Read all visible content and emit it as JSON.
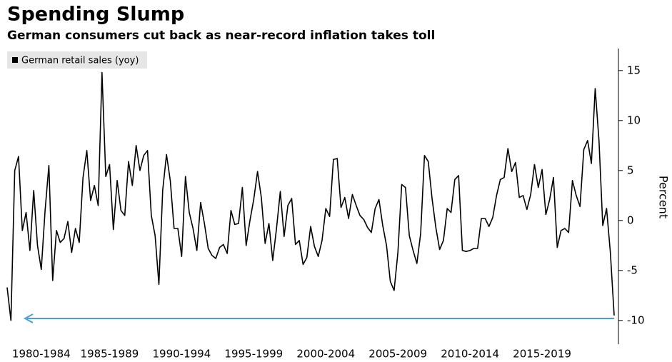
{
  "chart_data": {
    "type": "line",
    "title": "Spending Slump",
    "subtitle": "German consumers cut back as near-record inflation takes toll",
    "y_label": "Percent",
    "categories": [
      null,
      null,
      null,
      null,
      null,
      null,
      null,
      null,
      null,
      "1980-1984",
      null,
      null,
      null,
      null,
      null,
      null,
      null,
      null,
      null,
      null,
      null,
      null,
      null,
      null,
      null,
      null,
      null,
      "1985-1989",
      null,
      null,
      null,
      null,
      null,
      null,
      null,
      null,
      null,
      null,
      null,
      null,
      null,
      null,
      null,
      null,
      null,
      null,
      "1990-1994",
      null,
      null,
      null,
      null,
      null,
      null,
      null,
      null,
      null,
      null,
      null,
      null,
      null,
      null,
      null,
      null,
      null,
      null,
      "1995-1999",
      null,
      null,
      null,
      null,
      null,
      null,
      null,
      null,
      null,
      null,
      null,
      null,
      null,
      null,
      null,
      null,
      null,
      null,
      "2000-2004",
      null,
      null,
      null,
      null,
      null,
      null,
      null,
      null,
      null,
      null,
      null,
      null,
      null,
      null,
      null,
      null,
      null,
      null,
      "2005-2009",
      null,
      null,
      null,
      null,
      null,
      null,
      null,
      null,
      null,
      null,
      null,
      null,
      null,
      null,
      null,
      null,
      null,
      null,
      "2010-2014",
      null,
      null,
      null,
      null,
      null,
      null,
      null,
      null,
      null,
      null,
      null,
      null,
      null,
      null,
      null,
      null,
      null,
      null,
      "2015-2019",
      null,
      null,
      null,
      null,
      null,
      null,
      null,
      null,
      null,
      null,
      null,
      null,
      null,
      null,
      null,
      null,
      null,
      null,
      null
    ],
    "series": [
      {
        "name": "German retail sales (yoy)",
        "color": "#000000",
        "values": [
          -6.7,
          -10,
          5,
          6.4,
          -1,
          0.8,
          -3,
          3,
          -2.5,
          -4.9,
          1,
          5.5,
          -6,
          -1,
          -2.2,
          -1.8,
          -0.1,
          -3.2,
          -0.8,
          -2.2,
          4.3,
          7,
          2,
          3.5,
          1.5,
          14.8,
          4.4,
          5.6,
          -0.9,
          4,
          1,
          0.5,
          5.9,
          3.5,
          7.5,
          5,
          6.5,
          7,
          0.5,
          -1.5,
          -6.4,
          3,
          6.6,
          4,
          -0.8,
          -0.8,
          -3.6,
          4.4,
          0.8,
          -0.8,
          -3,
          1.8,
          -0.3,
          -2.8,
          -3.5,
          -3.8,
          -2.7,
          -2.4,
          -3.3,
          1,
          -0.4,
          -0.3,
          3.3,
          -2.5,
          0,
          2.1,
          4.9,
          2.3,
          -2.3,
          -0.3,
          -4,
          -0.8,
          2.9,
          -1.6,
          1.5,
          2.2,
          -2.4,
          -2,
          -4.4,
          -3.7,
          -0.6,
          -2.6,
          -3.6,
          -2,
          1.2,
          0.4,
          6.1,
          6.2,
          1.3,
          2.3,
          0.2,
          2.6,
          1.5,
          0.5,
          0.1,
          -0.7,
          -1.2,
          1.2,
          2.1,
          -0.5,
          -2.5,
          -6.1,
          -7,
          -3.2,
          3.6,
          3.3,
          -1.5,
          -3,
          -4.3,
          -1.3,
          6.5,
          5.9,
          2.2,
          -0.7,
          -2.9,
          -2,
          1.2,
          0.8,
          4.1,
          4.5,
          -3,
          -3.1,
          -3,
          -2.8,
          -2.8,
          0.2,
          0.2,
          -0.6,
          0.3,
          2.5,
          4.1,
          4.3,
          7.2,
          4.9,
          5.8,
          2.3,
          2.5,
          1.1,
          2.6,
          5.6,
          3.3,
          5.1,
          0.6,
          2.1,
          4.3,
          -2.7,
          -1,
          -0.8,
          -1.2,
          4,
          2.5,
          1.4,
          7.1,
          8,
          5.7,
          13.2,
          8,
          -0.5,
          1.2,
          -3.2,
          -9.5
        ]
      }
    ],
    "ylim": [
      -12.3,
      17.2
    ],
    "yticks": [
      15,
      10,
      5,
      0,
      -5,
      -10
    ],
    "legend": "top-left"
  }
}
